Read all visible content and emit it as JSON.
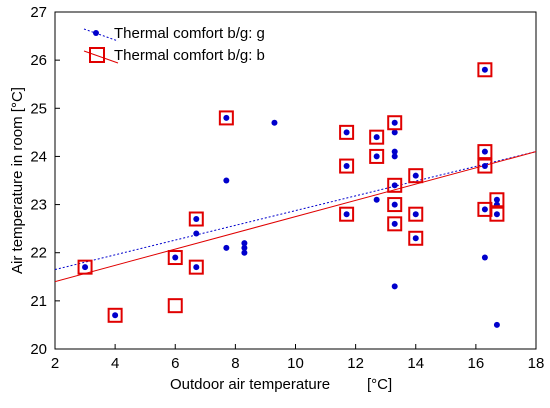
{
  "chart_data": {
    "type": "scatter",
    "title": "",
    "xlabel": "Outdoor air temperature",
    "xunit": "[°C]",
    "ylabel": "Air temperature in room",
    "yunit": "[°C]",
    "xlim": [
      2,
      18
    ],
    "ylim": [
      20,
      27
    ],
    "xticks": [
      "2",
      "4",
      "6",
      "8",
      "10",
      "12",
      "14",
      "16",
      "18"
    ],
    "yticks": [
      "20",
      "21",
      "22",
      "23",
      "24",
      "25",
      "26",
      "27"
    ],
    "grid": false,
    "legend_position": "top-left",
    "series": [
      {
        "name": "Thermal comfort b/g: g",
        "marker": "dot",
        "color": "#0000cc",
        "points": [
          [
            3.0,
            21.7
          ],
          [
            4.0,
            20.7
          ],
          [
            6.0,
            21.9
          ],
          [
            6.7,
            22.4
          ],
          [
            6.7,
            22.7
          ],
          [
            6.7,
            21.7
          ],
          [
            7.7,
            24.8
          ],
          [
            7.7,
            23.5
          ],
          [
            7.7,
            22.1
          ],
          [
            8.3,
            22.2
          ],
          [
            8.3,
            22.1
          ],
          [
            8.3,
            22.0
          ],
          [
            9.3,
            24.7
          ],
          [
            11.7,
            24.5
          ],
          [
            11.7,
            23.8
          ],
          [
            11.7,
            22.8
          ],
          [
            12.7,
            24.4
          ],
          [
            12.7,
            24.0
          ],
          [
            12.7,
            23.1
          ],
          [
            13.3,
            24.7
          ],
          [
            13.3,
            24.5
          ],
          [
            13.3,
            24.1
          ],
          [
            13.3,
            24.0
          ],
          [
            13.3,
            23.4
          ],
          [
            13.3,
            23.0
          ],
          [
            13.3,
            22.6
          ],
          [
            13.3,
            21.3
          ],
          [
            14.0,
            23.6
          ],
          [
            14.0,
            22.8
          ],
          [
            14.0,
            22.3
          ],
          [
            16.3,
            25.8
          ],
          [
            16.3,
            24.1
          ],
          [
            16.3,
            23.8
          ],
          [
            16.3,
            22.9
          ],
          [
            16.3,
            21.9
          ],
          [
            16.7,
            23.1
          ],
          [
            16.7,
            23.0
          ],
          [
            16.7,
            22.8
          ],
          [
            16.7,
            20.5
          ]
        ],
        "trendline": {
          "style": "dotted",
          "from": [
            2,
            21.65
          ],
          "to": [
            18,
            24.1
          ]
        }
      },
      {
        "name": "Thermal comfort b/g: b",
        "marker": "square",
        "color": "#e00000",
        "points": [
          [
            3.0,
            21.7
          ],
          [
            4.0,
            20.7
          ],
          [
            6.0,
            21.9
          ],
          [
            6.0,
            20.9
          ],
          [
            6.7,
            22.7
          ],
          [
            6.7,
            21.7
          ],
          [
            7.7,
            24.8
          ],
          [
            11.7,
            24.5
          ],
          [
            11.7,
            23.8
          ],
          [
            11.7,
            22.8
          ],
          [
            12.7,
            24.4
          ],
          [
            12.7,
            24.0
          ],
          [
            13.3,
            24.7
          ],
          [
            13.3,
            23.4
          ],
          [
            13.3,
            23.0
          ],
          [
            13.3,
            22.6
          ],
          [
            14.0,
            23.6
          ],
          [
            14.0,
            22.8
          ],
          [
            14.0,
            22.3
          ],
          [
            16.3,
            25.8
          ],
          [
            16.3,
            24.1
          ],
          [
            16.3,
            23.8
          ],
          [
            16.3,
            22.9
          ],
          [
            16.7,
            23.1
          ],
          [
            16.7,
            22.8
          ]
        ],
        "trendline": {
          "style": "solid",
          "from": [
            2,
            21.4
          ],
          "to": [
            18,
            24.1
          ]
        }
      }
    ]
  }
}
